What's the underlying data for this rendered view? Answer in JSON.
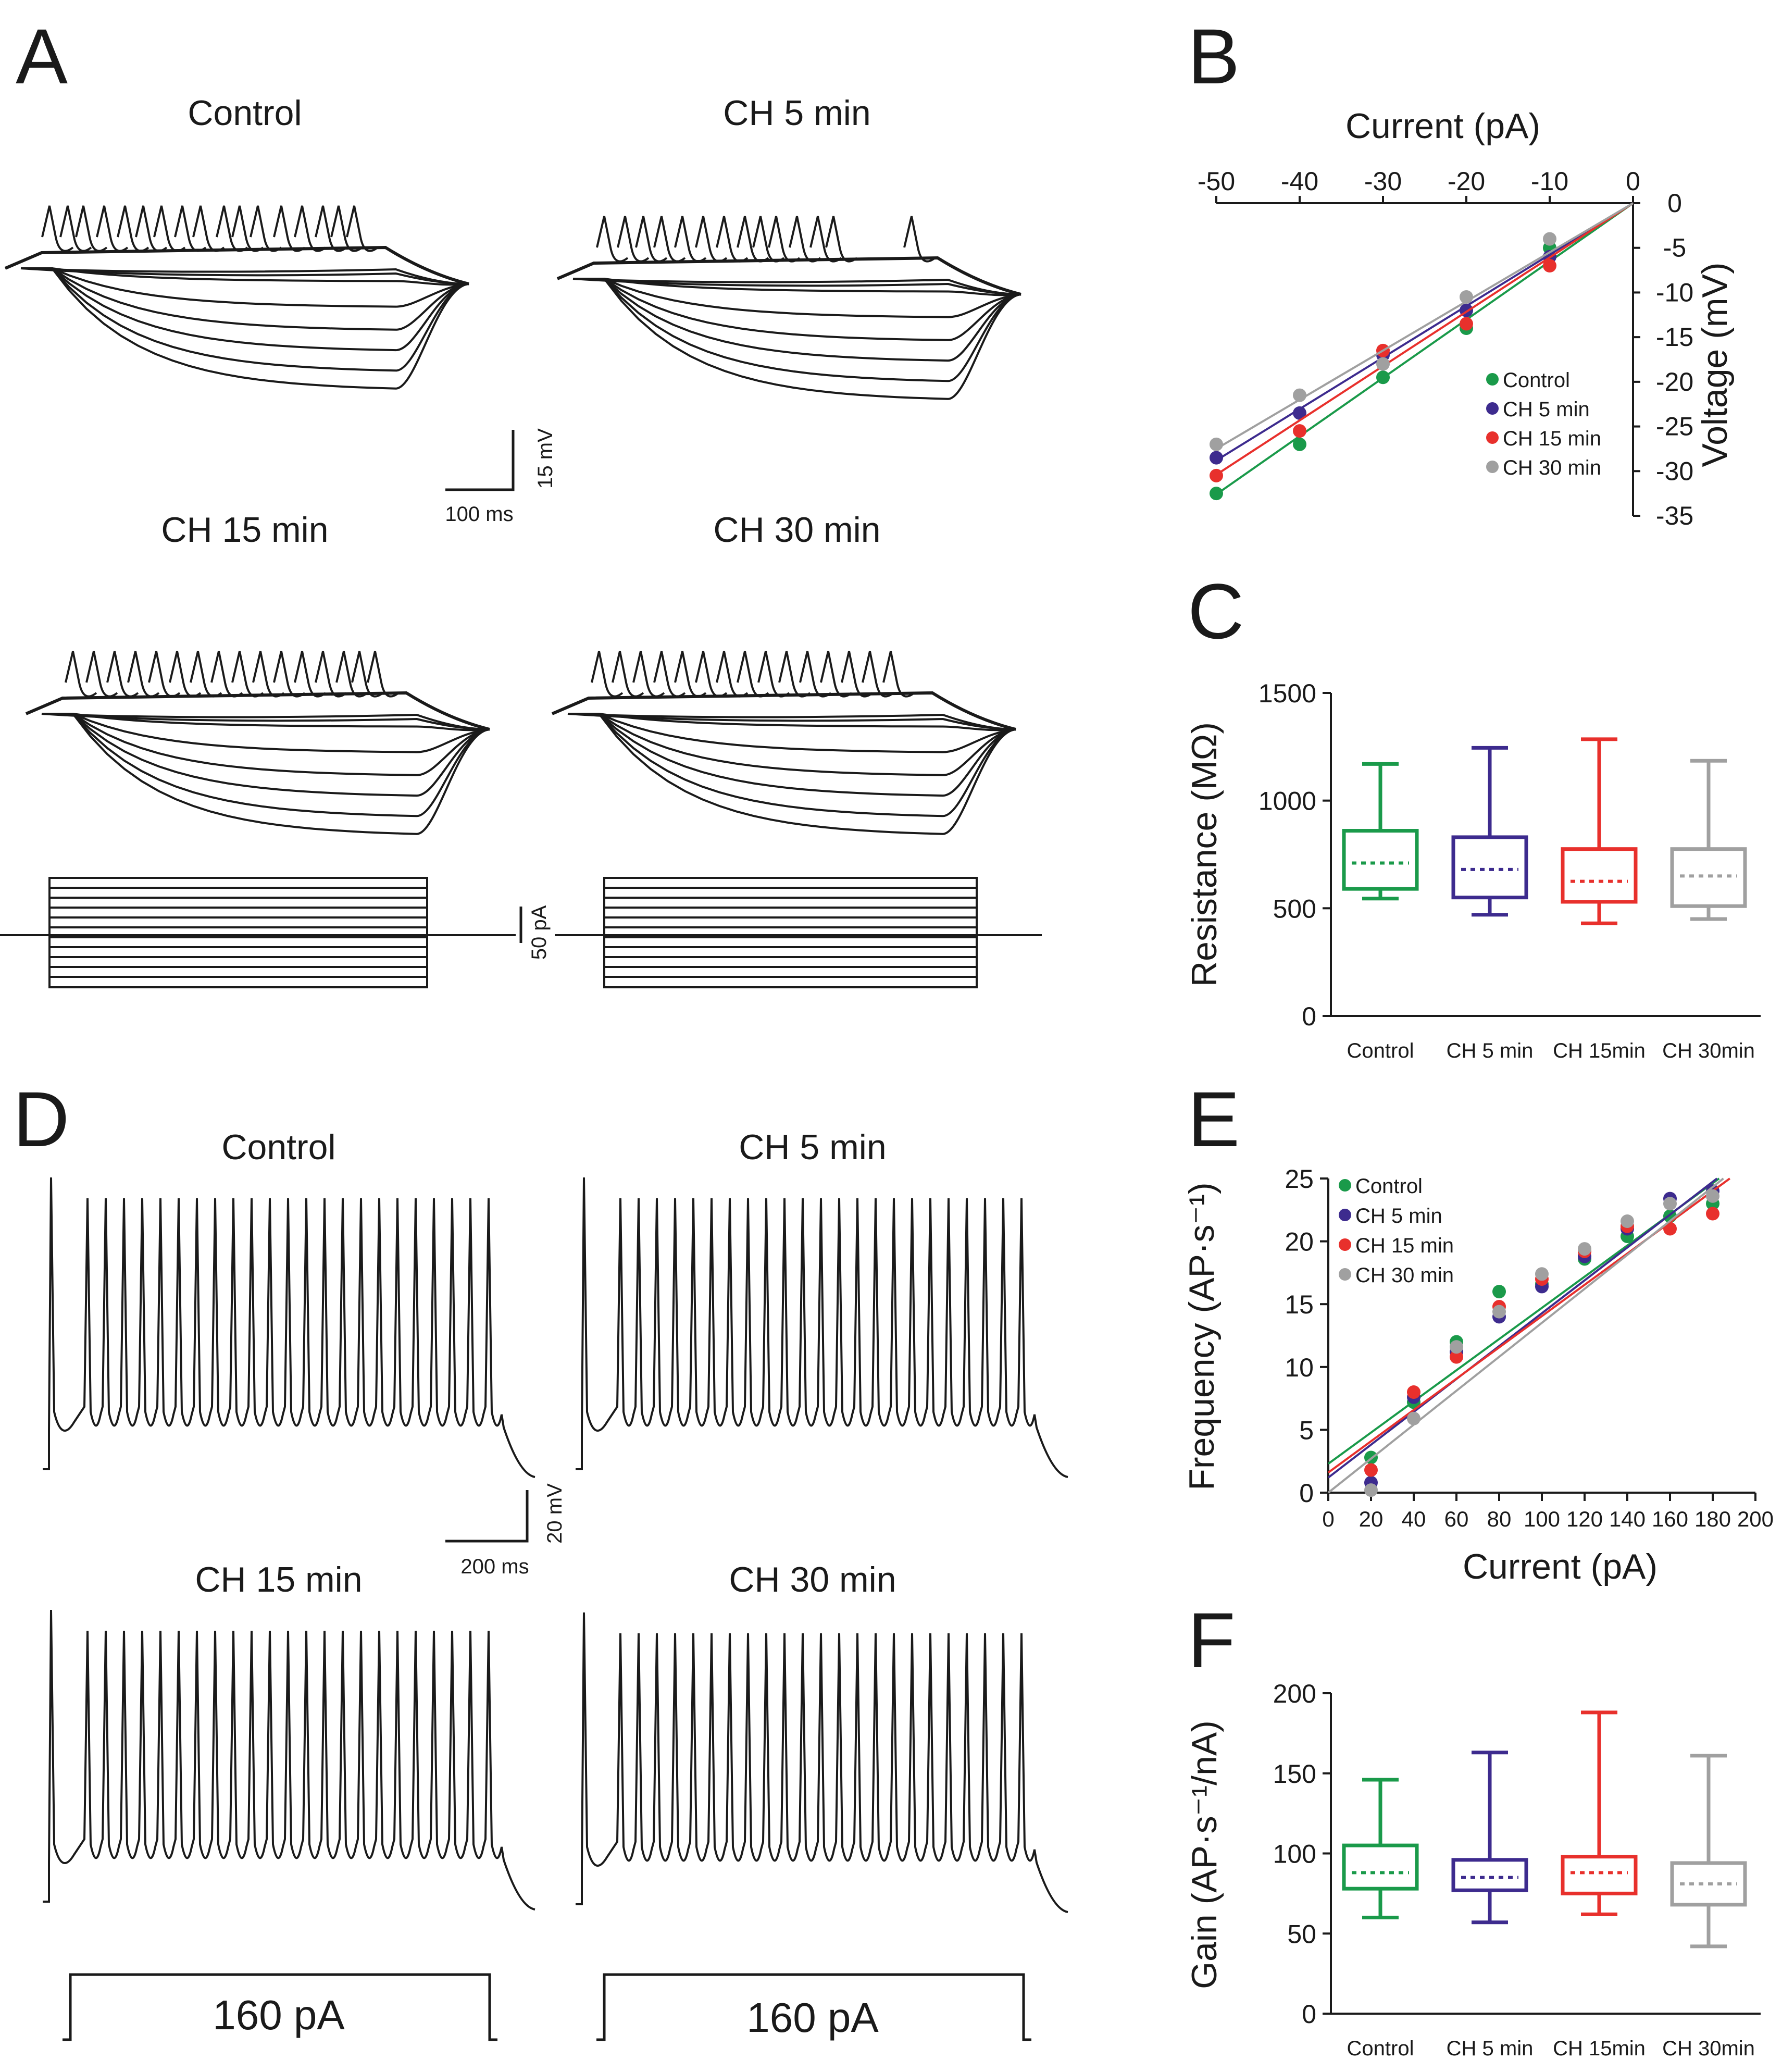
{
  "colors": {
    "control": "#1a9a4a",
    "ch5": "#3d2b8e",
    "ch15": "#e8302c",
    "ch30": "#a0a0a0",
    "ink": "#1a1a1a"
  },
  "panels": {
    "A": {
      "letter": "A",
      "trace_titles": [
        "Control",
        "CH 5 min",
        "CH 15 min",
        "CH 30 min"
      ],
      "scale_time": "100 ms",
      "scale_voltage": "15 mV",
      "scale_current": "50 pA"
    },
    "D": {
      "letter": "D",
      "trace_titles": [
        "Control",
        "CH 5 min",
        "CH 15 min",
        "CH 30 min"
      ],
      "scale_time": "200 ms",
      "scale_voltage": "20 mV",
      "step_label": "160 pA"
    },
    "B": {
      "letter": "B"
    },
    "C": {
      "letter": "C"
    },
    "E": {
      "letter": "E"
    },
    "F": {
      "letter": "F"
    }
  },
  "chart_data": [
    {
      "panel": "B",
      "type": "scatter",
      "title": "",
      "xlabel": "Current (pA)",
      "ylabel": "Voltage (mV)",
      "xlim": [
        -50,
        0
      ],
      "ylim": [
        -35,
        0
      ],
      "x_ticks": [
        -50,
        -40,
        -30,
        -20,
        -10,
        0
      ],
      "y_ticks": [
        0,
        -5,
        -10,
        -15,
        -20,
        -25,
        -30,
        -35
      ],
      "legend_position": "bottom-right",
      "x": [
        -50,
        -40,
        -30,
        -20,
        -10
      ],
      "series": [
        {
          "name": "Control",
          "key": "control",
          "values": [
            -32.5,
            -27,
            -19.5,
            -14,
            -5
          ],
          "fit": [
            -32.6,
            0
          ]
        },
        {
          "name": "CH 5 min",
          "key": "ch5",
          "values": [
            -28.5,
            -23.5,
            -17,
            -12,
            -6
          ],
          "fit": [
            -28.8,
            0
          ]
        },
        {
          "name": "CH 15 min",
          "key": "ch15",
          "values": [
            -30.5,
            -25.5,
            -16.5,
            -13.5,
            -7
          ],
          "fit": [
            -30.4,
            0
          ]
        },
        {
          "name": "CH 30 min",
          "key": "ch30",
          "values": [
            -27,
            -21.5,
            -18,
            -10.5,
            -4
          ],
          "fit": [
            -27.5,
            0
          ]
        }
      ]
    },
    {
      "panel": "C",
      "type": "box",
      "xlabel": "",
      "ylabel": "Resistance (MΩ)",
      "ylim": [
        0,
        1500
      ],
      "y_ticks": [
        0,
        500,
        1000,
        1500
      ],
      "categories": [
        "Control",
        "CH 5 min",
        "CH 15min",
        "CH 30min"
      ],
      "series": [
        {
          "name": "Control",
          "key": "control",
          "min": 545,
          "q1": 590,
          "median": 710,
          "q3": 860,
          "max": 1170
        },
        {
          "name": "CH 5 min",
          "key": "ch5",
          "min": 470,
          "q1": 550,
          "median": 680,
          "q3": 830,
          "max": 1245
        },
        {
          "name": "CH 15 min",
          "key": "ch15",
          "min": 430,
          "q1": 530,
          "median": 625,
          "q3": 775,
          "max": 1285
        },
        {
          "name": "CH 30 min",
          "key": "ch30",
          "min": 450,
          "q1": 510,
          "median": 650,
          "q3": 775,
          "max": 1185
        }
      ]
    },
    {
      "panel": "E",
      "type": "scatter",
      "xlabel": "Current (pA)",
      "ylabel": "Frequency (AP·s⁻¹)",
      "xlim": [
        0,
        200
      ],
      "ylim": [
        0,
        25
      ],
      "x_ticks": [
        0,
        20,
        40,
        60,
        80,
        100,
        120,
        140,
        160,
        180,
        200
      ],
      "y_ticks": [
        0,
        5,
        10,
        15,
        20,
        25
      ],
      "legend_position": "top-left",
      "x": [
        20,
        40,
        60,
        80,
        100,
        120,
        140,
        160,
        180
      ],
      "series": [
        {
          "name": "Control",
          "key": "control",
          "values": [
            2.8,
            7.2,
            12,
            16,
            16.6,
            18.6,
            20.4,
            22,
            23
          ],
          "fit_line": [
            [
              0,
              2.3
            ],
            [
              183,
              25
            ]
          ]
        },
        {
          "name": "CH 5 min",
          "key": "ch5",
          "values": [
            0.8,
            7.6,
            11.2,
            14,
            16.4,
            18.8,
            21,
            23.4,
            24
          ],
          "fit_line": [
            [
              0,
              1.2
            ],
            [
              182,
              25
            ]
          ]
        },
        {
          "name": "CH 15 min",
          "key": "ch15",
          "values": [
            1.8,
            8,
            10.8,
            14.8,
            17,
            19.2,
            21.2,
            21,
            22.2
          ],
          "fit_line": [
            [
              0,
              1.6
            ],
            [
              188,
              25
            ]
          ]
        },
        {
          "name": "CH 30 min",
          "key": "ch30",
          "values": [
            0.2,
            5.9,
            11.6,
            14.4,
            17.4,
            19.4,
            21.6,
            23,
            23.6
          ],
          "fit_line": [
            [
              0,
              -0.8
            ],
            [
              185,
              25
            ]
          ]
        }
      ]
    },
    {
      "panel": "F",
      "type": "box",
      "xlabel": "",
      "ylabel": "Gain (AP·s⁻¹/nA)",
      "ylim": [
        0,
        200
      ],
      "y_ticks": [
        0,
        50,
        100,
        150,
        200
      ],
      "categories": [
        "Control",
        "CH 5 min",
        "CH 15min",
        "CH 30min"
      ],
      "series": [
        {
          "name": "Control",
          "key": "control",
          "min": 60,
          "q1": 78,
          "median": 88,
          "q3": 105,
          "max": 146
        },
        {
          "name": "CH 5 min",
          "key": "ch5",
          "min": 57,
          "q1": 77,
          "median": 85,
          "q3": 96,
          "max": 163
        },
        {
          "name": "CH 15 min",
          "key": "ch15",
          "min": 62,
          "q1": 75,
          "median": 88,
          "q3": 98,
          "max": 188
        },
        {
          "name": "CH 30 min",
          "key": "ch30",
          "min": 42,
          "q1": 68,
          "median": 81,
          "q3": 94,
          "max": 161
        }
      ]
    }
  ]
}
